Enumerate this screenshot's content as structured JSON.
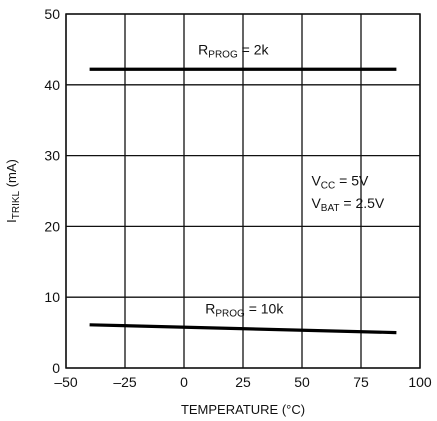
{
  "chart_data": {
    "type": "line",
    "title": "",
    "xlabel": "TEMPERATURE (°C)",
    "ylabel": {
      "main": "I",
      "sub": "TRIKL",
      "unit": " (mA)"
    },
    "xlim": [
      -50,
      100
    ],
    "ylim": [
      0,
      50
    ],
    "x_ticks": [
      -50,
      -25,
      0,
      25,
      50,
      75,
      100
    ],
    "x_tick_labels": [
      "–50",
      "–25",
      "0",
      "25",
      "50",
      "75",
      "100"
    ],
    "y_ticks": [
      0,
      10,
      20,
      30,
      40,
      50
    ],
    "y_tick_labels": [
      "0",
      "10",
      "20",
      "30",
      "40",
      "50"
    ],
    "grid": true,
    "series": [
      {
        "name": "R_PROG = 2k",
        "x": [
          -40,
          90
        ],
        "y": [
          42.2,
          42.2
        ]
      },
      {
        "name": "R_PROG = 10k",
        "x": [
          -40,
          90
        ],
        "y": [
          6.1,
          5.0
        ]
      }
    ],
    "annotations": [
      {
        "id": "rprog2k",
        "parts": [
          "R",
          "PROG",
          " = 2k"
        ],
        "x": 6,
        "y": 44.3
      },
      {
        "id": "rprog10k",
        "parts": [
          "R",
          "PROG",
          " = 10k"
        ],
        "x": 9,
        "y": 7.7
      },
      {
        "id": "vcc",
        "parts": [
          "V",
          "CC",
          " = 5V"
        ],
        "x": 54,
        "y": 25.8
      },
      {
        "id": "vbat",
        "parts": [
          "V",
          "BAT",
          " = 2.5V"
        ],
        "x": 54,
        "y": 22.6
      }
    ]
  }
}
